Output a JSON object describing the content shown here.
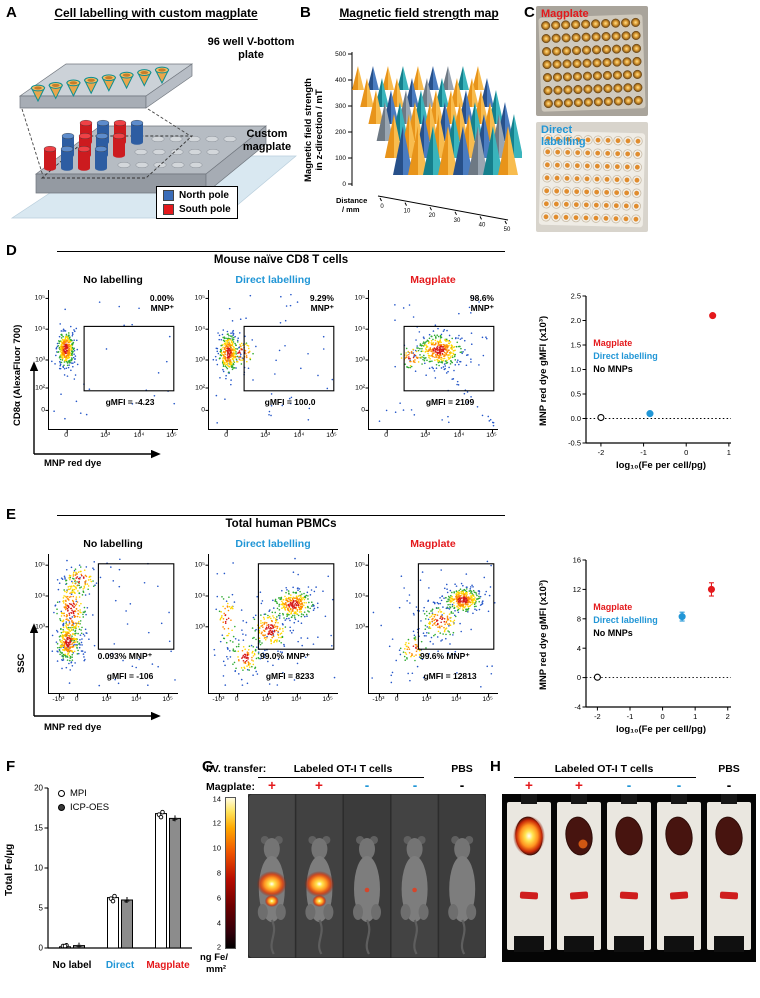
{
  "colors": {
    "red": "#e4191c",
    "blue": "#2196d6"
  },
  "panelA": {
    "label": "A",
    "title": "Cell labelling with custom magplate",
    "plate_label": "96 well V-bottom plate",
    "magplate_label": "Custom magplate",
    "legend": [
      {
        "label": "North pole",
        "color": "#3a6cb8"
      },
      {
        "label": "South pole",
        "color": "#e4191c"
      }
    ]
  },
  "panelB": {
    "label": "B",
    "title": "Magnetic field strength map",
    "ylabel_line1": "Magnetic field strength",
    "ylabel_line2": "in z-direction / mT",
    "yticks": [
      "500",
      "400",
      "300",
      "200",
      "100",
      "0"
    ],
    "xticks": [
      "0",
      "10",
      "20",
      "30",
      "40",
      "50"
    ],
    "xlabel_line1": "Distance",
    "xlabel_line2": "/ mm"
  },
  "panelC": {
    "label": "C",
    "photos": [
      {
        "label": "Magplate",
        "color": "#e4191c"
      },
      {
        "label": "Direct labelling",
        "color": "#2196d6"
      }
    ]
  },
  "panelD": {
    "label": "D",
    "title": "Mouse naïve CD8 T cells",
    "ylabel": "CD8α (AlexaFluor 700)",
    "xlabel": "MNP red dye",
    "flow_yticks": [
      "10⁵",
      "10⁴",
      "10³",
      "10²",
      "0"
    ],
    "flow_xticks": [
      "0",
      "10³",
      "10⁴",
      "10⁵"
    ],
    "plots": [
      {
        "title": "No labelling",
        "title_color": "#000000",
        "pct1": "0.00%",
        "pct2": "MNP⁺",
        "gmfi": "gMFI = -4.23"
      },
      {
        "title": "Direct labelling",
        "title_color": "#2196d6",
        "pct1": "9.29%",
        "pct2": "MNP⁺",
        "gmfi": "gMFI = 100.0"
      },
      {
        "title": "Magplate",
        "title_color": "#e4191c",
        "pct1": "98.6%",
        "pct2": "MNP⁺",
        "gmfi": "gMFI = 2109"
      }
    ],
    "scatter": {
      "ylabel": "MNP red dye gMFI  (x10³)",
      "xlabel": "log₁₀(Fe per cell/pg)",
      "ylim": [
        -0.5,
        2.5
      ],
      "xlim": [
        -2.35,
        1.05
      ],
      "yticks": [
        "2.5",
        "2.0",
        "1.5",
        "1.0",
        "0.5",
        "0.0",
        "-0.5"
      ],
      "xticks": [
        "-2",
        "-1",
        "0",
        "1"
      ],
      "points": [
        {
          "x": -2,
          "y": 0.02,
          "style": "open",
          "color": "#000000"
        },
        {
          "x": -0.85,
          "y": 0.1,
          "style": "filled",
          "color": "#2196d6"
        },
        {
          "x": 0.62,
          "y": 2.1,
          "style": "filled",
          "color": "#e4191c"
        }
      ],
      "legend": [
        {
          "label": "Magplate",
          "color": "#e4191c"
        },
        {
          "label": "Direct labelling",
          "color": "#2196d6"
        },
        {
          "label": "No MNPs",
          "color": "#000000"
        }
      ]
    }
  },
  "panelE": {
    "label": "E",
    "title": "Total human PBMCs",
    "ylabel": "SSC",
    "xlabel": "MNP red dye",
    "flow_yticks": [
      "10⁵",
      "10⁴",
      "10³"
    ],
    "flow_xticks": [
      "-10³",
      "0",
      "10³",
      "10⁴",
      "10⁵"
    ],
    "plots": [
      {
        "title": "No labelling",
        "title_color": "#000000",
        "pct": "0.093% MNP⁺",
        "gmfi": "gMFI = -106"
      },
      {
        "title": "Direct labelling",
        "title_color": "#2196d6",
        "pct": "99.0% MNP⁺",
        "gmfi": "gMFI = 8233"
      },
      {
        "title": "Magplate",
        "title_color": "#e4191c",
        "pct": "99.6% MNP⁺",
        "gmfi": "gMFI = 12813"
      }
    ],
    "scatter": {
      "ylabel": "MNP red dye gMFI  (x10³)",
      "xlabel": "log₁₀(Fe per cell/pg)",
      "ylim": [
        -4,
        16
      ],
      "xlim": [
        -2.35,
        2.1
      ],
      "yticks": [
        "16",
        "12",
        "8",
        "4",
        "0",
        "-4"
      ],
      "xticks": [
        "-2",
        "-1",
        "0",
        "1",
        "2"
      ],
      "points": [
        {
          "x": -2,
          "y": 0.05,
          "style": "open",
          "color": "#000000"
        },
        {
          "x": 0.6,
          "y": 8.3,
          "err": 0.6,
          "style": "filled",
          "color": "#2196d6"
        },
        {
          "x": 1.5,
          "y": 12.0,
          "err": 0.9,
          "style": "filled",
          "color": "#e4191c"
        }
      ],
      "legend": [
        {
          "label": "Magplate",
          "color": "#e4191c"
        },
        {
          "label": "Direct labelling",
          "color": "#2196d6"
        },
        {
          "label": "No MNPs",
          "color": "#000000"
        }
      ]
    }
  },
  "panelF": {
    "label": "F",
    "ylabel": "Total Fe/µg",
    "ylim": [
      0,
      20
    ],
    "yticks": [
      "0",
      "5",
      "10",
      "15",
      "20"
    ],
    "categories": [
      {
        "label": "No label",
        "color": "#000000"
      },
      {
        "label": "Direct",
        "color": "#2196d6"
      },
      {
        "label": "Magplate",
        "color": "#e4191c"
      }
    ],
    "series": [
      {
        "name": "MPI",
        "style": "open",
        "values": [
          0.15,
          6.3,
          16.8
        ]
      },
      {
        "name": "ICP-OES",
        "style": "filled",
        "values": [
          0.3,
          6.0,
          16.2
        ]
      }
    ]
  },
  "panelG": {
    "label": "G",
    "header_prefix": "I.V. transfer:",
    "header_group": "Labeled OT-I T cells",
    "header_pbs": "PBS",
    "row_label": "Magplate:",
    "symbols": [
      {
        "text": "+",
        "color": "#e4191c"
      },
      {
        "text": "+",
        "color": "#e4191c"
      },
      {
        "text": "-",
        "color": "#2196d6"
      },
      {
        "text": "-",
        "color": "#2196d6"
      },
      {
        "text": "-",
        "color": "#000000"
      }
    ],
    "colorbar": {
      "ticks": [
        "14",
        "12",
        "10",
        "8",
        "6",
        "4",
        "2"
      ],
      "label_line1": "ng Fe/",
      "label_line2": "mm²"
    }
  },
  "panelH": {
    "label": "H",
    "header_group": "Labeled OT-I T cells",
    "header_pbs": "PBS",
    "symbols": [
      {
        "text": "+",
        "color": "#e4191c"
      },
      {
        "text": "+",
        "color": "#e4191c"
      },
      {
        "text": "-",
        "color": "#2196d6"
      },
      {
        "text": "-",
        "color": "#2196d6"
      },
      {
        "text": "-",
        "color": "#000000"
      }
    ]
  }
}
